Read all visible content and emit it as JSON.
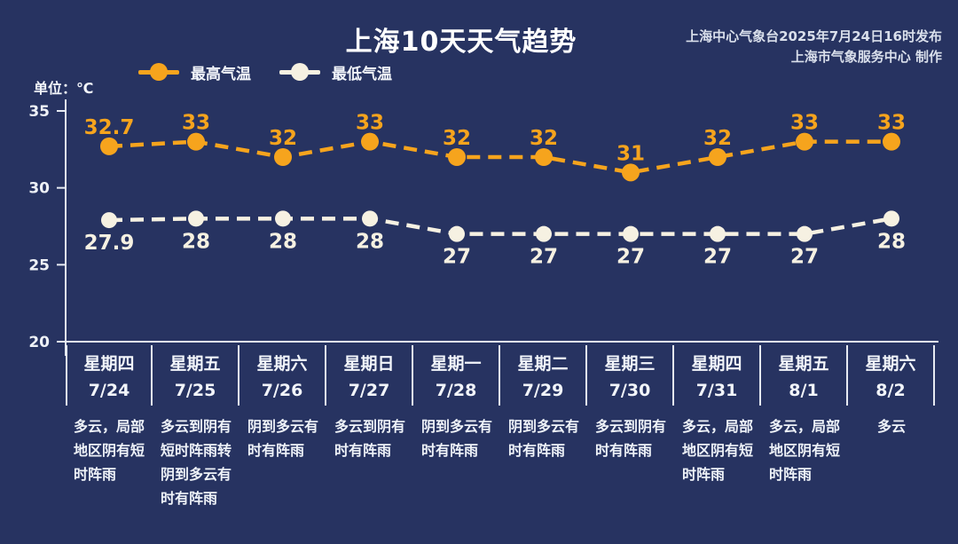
{
  "title": "上海10天天气趋势",
  "source": {
    "line1": "上海中心气象台2025年7月24日16时发布",
    "line2": "上海市气象服务中心 制作"
  },
  "unit_label": "单位：℃",
  "legend": {
    "max_label": "最高气温",
    "min_label": "最低气温"
  },
  "colors": {
    "background": "#273361",
    "max_series": "#f6a41d",
    "min_series": "#f6f1e2",
    "axis": "#e6eaf2",
    "tick_text": "#eef1f7"
  },
  "chart_data": {
    "type": "line",
    "title": "上海10天天气趋势",
    "categories": [
      "星期四",
      "星期五",
      "星期六",
      "星期日",
      "星期一",
      "星期二",
      "星期三",
      "星期四",
      "星期五",
      "星期六"
    ],
    "dates": [
      "7/24",
      "7/25",
      "7/26",
      "7/27",
      "7/28",
      "7/29",
      "7/30",
      "7/31",
      "8/1",
      "8/2"
    ],
    "weather": [
      "多云，局部\n地区阴有短\n时阵雨",
      "多云到阴有\n短时阵雨转\n阴到多云有\n时有阵雨",
      "阴到多云有\n时有阵雨",
      "多云到阴有\n时有阵雨",
      "阴到多云有\n时有阵雨",
      "阴到多云有\n时有阵雨",
      "多云到阴有\n时有阵雨",
      "多云，局部\n地区阴有短\n时阵雨",
      "多云，局部\n地区阴有短\n时阵雨",
      "多云"
    ],
    "series": [
      {
        "name": "最高气温",
        "color": "#f6a41d",
        "label_position": "above",
        "values": [
          32.7,
          33,
          32,
          33,
          32,
          32,
          31,
          32,
          33,
          33
        ]
      },
      {
        "name": "最低气温",
        "color": "#f6f1e2",
        "label_position": "below",
        "values": [
          27.9,
          28,
          28,
          28,
          27,
          27,
          27,
          27,
          27,
          28
        ]
      }
    ],
    "ylabel_unit": "℃",
    "ylim": [
      20,
      35
    ],
    "yticks": [
      20,
      25,
      30,
      35
    ],
    "grid": false,
    "legend_position": "top-left",
    "line_style": "dashed"
  }
}
